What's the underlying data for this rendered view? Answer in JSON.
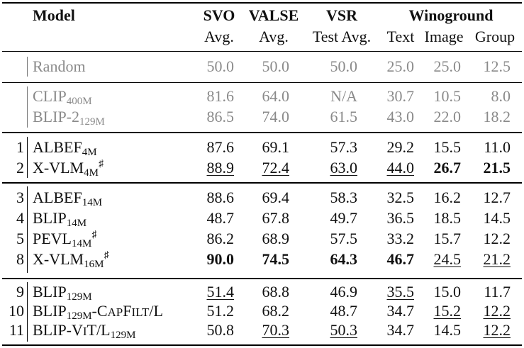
{
  "headers": {
    "model": "Model",
    "svo": "SVO",
    "svo_sub": "Avg.",
    "valse": "VALSE",
    "valse_sub": "Avg.",
    "vsr": "VSR",
    "vsr_sub": "Test Avg.",
    "winoground": "Winoground",
    "wino_text": "Text",
    "wino_image": "Image",
    "wino_group": "Group"
  },
  "rows": [
    {
      "idx": "",
      "name": "Random",
      "sub": "",
      "sup": "",
      "gray": true,
      "cells": [
        {
          "v": "50.0"
        },
        {
          "v": "50.0"
        },
        {
          "v": "50.0"
        },
        {
          "v": "25.0"
        },
        {
          "v": "25.0"
        },
        {
          "v": "12.5"
        }
      ]
    },
    {
      "idx": "",
      "name": "CLIP",
      "sub": "400M",
      "sup": "",
      "gray": true,
      "cells": [
        {
          "v": "81.6"
        },
        {
          "v": "64.0"
        },
        {
          "v": "N/A"
        },
        {
          "v": "30.7"
        },
        {
          "v": "10.5"
        },
        {
          "v": "8.0"
        }
      ]
    },
    {
      "idx": "",
      "name": "BLIP-2",
      "sub": "129M",
      "sup": "",
      "gray": true,
      "cells": [
        {
          "v": "86.5"
        },
        {
          "v": "74.0"
        },
        {
          "v": "61.5"
        },
        {
          "v": "43.0"
        },
        {
          "v": "22.0"
        },
        {
          "v": "18.2"
        }
      ]
    },
    {
      "idx": "1",
      "name": "ALBEF",
      "sub": "4M",
      "sup": "",
      "cells": [
        {
          "v": "87.6"
        },
        {
          "v": "69.1"
        },
        {
          "v": "57.3"
        },
        {
          "v": "29.2"
        },
        {
          "v": "15.5"
        },
        {
          "v": "11.0"
        }
      ]
    },
    {
      "idx": "2",
      "name": "X-VLM",
      "sub": "4M",
      "sup": "♯",
      "cells": [
        {
          "v": "88.9",
          "u": true
        },
        {
          "v": "72.4",
          "u": true
        },
        {
          "v": "63.0",
          "u": true
        },
        {
          "v": "44.0",
          "u": true
        },
        {
          "v": "26.7",
          "b": true
        },
        {
          "v": "21.5",
          "b": true
        }
      ]
    },
    {
      "idx": "3",
      "name": "ALBEF",
      "sub": "14M",
      "sup": "",
      "cells": [
        {
          "v": "88.6"
        },
        {
          "v": "69.4"
        },
        {
          "v": "58.3"
        },
        {
          "v": "32.5"
        },
        {
          "v": "16.2"
        },
        {
          "v": "12.7"
        }
      ]
    },
    {
      "idx": "4",
      "name": "BLIP",
      "sub": "14M",
      "sup": "",
      "cells": [
        {
          "v": "48.7"
        },
        {
          "v": "67.8"
        },
        {
          "v": "49.7"
        },
        {
          "v": "36.5"
        },
        {
          "v": "18.5"
        },
        {
          "v": "14.5"
        }
      ]
    },
    {
      "idx": "5",
      "name": "PEVL",
      "sub": "14M",
      "sup": "♯",
      "cells": [
        {
          "v": "86.2"
        },
        {
          "v": "68.9"
        },
        {
          "v": "57.5"
        },
        {
          "v": "33.2"
        },
        {
          "v": "15.7"
        },
        {
          "v": "12.2"
        }
      ]
    },
    {
      "idx": "8",
      "name": "X-VLM",
      "sub": "16M",
      "sup": "♯",
      "cells": [
        {
          "v": "90.0",
          "b": true
        },
        {
          "v": "74.5",
          "b": true
        },
        {
          "v": "64.3",
          "b": true
        },
        {
          "v": "46.7",
          "b": true
        },
        {
          "v": "24.5",
          "u": true
        },
        {
          "v": "21.2",
          "u": true
        }
      ]
    },
    {
      "idx": "9",
      "name": "BLIP",
      "sub": "129M",
      "sup": "",
      "cells": [
        {
          "v": "51.4",
          "u": true
        },
        {
          "v": "68.8"
        },
        {
          "v": "46.9"
        },
        {
          "v": "35.5",
          "u": true
        },
        {
          "v": "15.0"
        },
        {
          "v": "11.7"
        }
      ]
    },
    {
      "idx": "10",
      "name": "BLIP",
      "sub": "129M",
      "sup": "",
      "tail": "-C",
      "tail_sc": "AP",
      "tail2": "F",
      "tail2_sc": "ILT",
      "tail3": "/L",
      "cells": [
        {
          "v": "51.2"
        },
        {
          "v": "68.2"
        },
        {
          "v": "48.7"
        },
        {
          "v": "34.7"
        },
        {
          "v": "15.2",
          "u": true
        },
        {
          "v": "12.2",
          "u": true
        }
      ]
    },
    {
      "idx": "11",
      "name": "BLIP-V",
      "name_sc": "I",
      "name_tail": "T/L",
      "sub": "129M",
      "sup": "",
      "cells": [
        {
          "v": "50.8"
        },
        {
          "v": "70.3",
          "u": true
        },
        {
          "v": "50.3",
          "u": true
        },
        {
          "v": "34.7"
        },
        {
          "v": "14.5"
        },
        {
          "v": "12.2",
          "u": true
        }
      ]
    }
  ]
}
